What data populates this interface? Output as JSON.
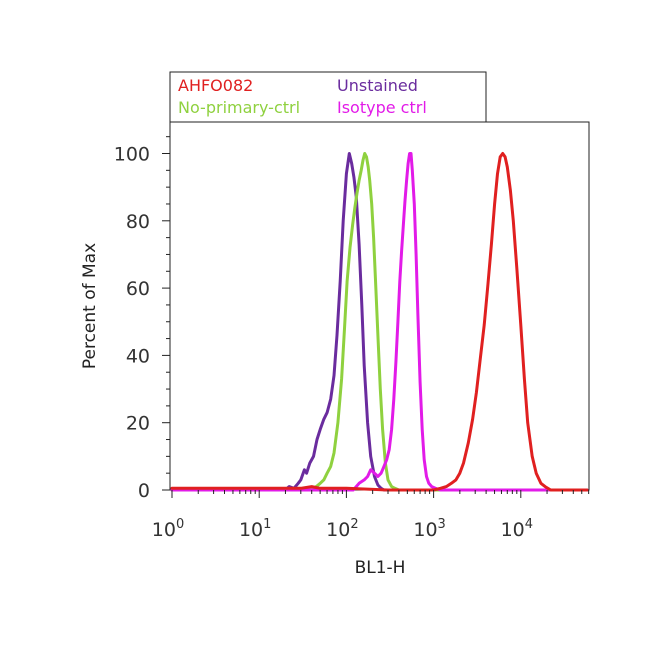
{
  "chart_data": {
    "type": "line",
    "xlabel": "BL1-H",
    "ylabel": "Percent of Max",
    "x_scale": "log",
    "xlim": [
      1,
      60000
    ],
    "ylim": [
      0,
      110
    ],
    "grid": false,
    "legend_placement": "top-left",
    "x_ticks": [
      {
        "value": 1,
        "base": "10",
        "exp": "0"
      },
      {
        "value": 10,
        "base": "10",
        "exp": "1"
      },
      {
        "value": 100,
        "base": "10",
        "exp": "2"
      },
      {
        "value": 1000,
        "base": "10",
        "exp": "3"
      },
      {
        "value": 10000,
        "base": "10",
        "exp": "4"
      }
    ],
    "y_ticks": [
      "0",
      "20",
      "40",
      "60",
      "80",
      "100"
    ],
    "series": [
      {
        "name": "Unstained",
        "color": "#6a2c9e",
        "x": [
          1,
          20,
          22,
          25,
          28,
          30,
          33,
          35,
          38,
          42,
          46,
          50,
          55,
          60,
          66,
          72,
          78,
          85,
          92,
          100,
          108,
          115,
          122,
          130,
          140,
          150,
          160,
          175,
          190,
          210,
          230,
          250,
          270,
          300,
          60000
        ],
        "y": [
          0,
          0,
          1,
          0.5,
          2,
          3,
          6,
          5,
          8,
          10,
          15,
          18,
          21,
          23,
          27,
          34,
          46,
          62,
          80,
          94,
          100,
          97,
          93,
          87,
          73,
          55,
          37,
          20,
          10,
          4,
          1.5,
          0.5,
          0,
          0,
          0
        ]
      },
      {
        "name": "No-primary-ctrl",
        "color": "#8fd13f",
        "x": [
          1,
          35,
          40,
          45,
          50,
          55,
          60,
          66,
          72,
          80,
          88,
          95,
          102,
          110,
          118,
          125,
          132,
          140,
          148,
          155,
          162,
          170,
          178,
          185,
          195,
          205,
          215,
          230,
          245,
          260,
          280,
          300,
          330,
          360,
          400,
          60000
        ],
        "y": [
          0,
          0,
          0.5,
          1,
          2,
          3,
          5,
          7,
          11,
          20,
          33,
          48,
          62,
          72,
          79,
          84,
          88,
          92,
          95,
          98,
          100,
          99,
          96,
          92,
          85,
          75,
          63,
          46,
          30,
          18,
          8,
          3,
          1,
          0.5,
          0,
          0
        ]
      },
      {
        "name": "Isotype ctrl",
        "color": "#e21be8",
        "x": [
          1,
          120,
          140,
          160,
          175,
          190,
          210,
          230,
          250,
          270,
          290,
          310,
          330,
          350,
          370,
          390,
          410,
          430,
          450,
          470,
          490,
          510,
          530,
          550,
          570,
          600,
          630,
          660,
          700,
          740,
          780,
          830,
          880,
          950,
          1050,
          1200,
          60000
        ],
        "y": [
          0,
          0,
          2,
          3,
          4,
          6,
          5,
          4,
          5,
          7,
          9,
          12,
          18,
          27,
          38,
          50,
          62,
          71,
          79,
          86,
          92,
          97,
          100,
          100,
          95,
          85,
          70,
          52,
          32,
          18,
          9,
          4,
          2,
          1,
          0.5,
          0,
          0
        ]
      },
      {
        "name": "AHFO082",
        "color": "#e02020",
        "x": [
          1,
          30,
          40,
          50,
          100,
          300,
          700,
          1000,
          1200,
          1400,
          1600,
          1800,
          2000,
          2200,
          2500,
          2800,
          3100,
          3400,
          3800,
          4200,
          4600,
          5000,
          5400,
          5800,
          6200,
          6600,
          7000,
          7600,
          8200,
          9000,
          10000,
          11000,
          12000,
          13500,
          15000,
          17000,
          19000,
          22000,
          60000
        ],
        "y": [
          0.5,
          0.5,
          1,
          0.5,
          0.5,
          0,
          0,
          0,
          0.5,
          1,
          2,
          3,
          5,
          8,
          14,
          21,
          29,
          38,
          49,
          61,
          73,
          85,
          94,
          99,
          100,
          99,
          96,
          89,
          80,
          66,
          49,
          33,
          20,
          10,
          5,
          2,
          1,
          0,
          0
        ]
      }
    ]
  }
}
